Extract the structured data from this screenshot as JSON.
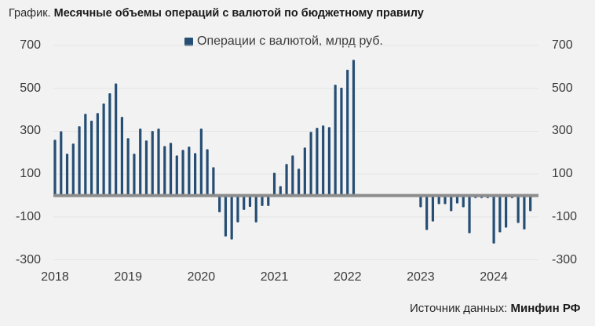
{
  "title": {
    "prefix": "График.",
    "main": "Месячные объемы операций с валютой по бюджетному правилу"
  },
  "legend": {
    "label": "Операции с валютой, млрд руб.",
    "color": "#264e74"
  },
  "y_ticks": [
    "700",
    "500",
    "300",
    "100",
    "-100",
    "-300"
  ],
  "x_ticks": [
    "2018",
    "2019",
    "2020",
    "2021",
    "2022",
    "2023",
    "2024"
  ],
  "source": {
    "prefix": "Источник данных:",
    "org": "Минфин РФ"
  },
  "colors": {
    "bar": "#264e74",
    "zero_line": "#8c8c8c",
    "grid": "#e4e4e4",
    "background": "#f2f2f2"
  },
  "chart_data": {
    "type": "bar",
    "title": "Месячные объемы операций с валютой по бюджетному правилу",
    "xlabel": "",
    "ylabel": "млрд руб.",
    "ylim": [
      -300,
      700
    ],
    "yticks": [
      700,
      500,
      300,
      100,
      -100,
      -300
    ],
    "grid": true,
    "legend_position": "top",
    "dual_y_axis_labels": true,
    "categories": [
      "2018-01",
      "2018-02",
      "2018-03",
      "2018-04",
      "2018-05",
      "2018-06",
      "2018-07",
      "2018-08",
      "2018-09",
      "2018-10",
      "2018-11",
      "2018-12",
      "2019-01",
      "2019-02",
      "2019-03",
      "2019-04",
      "2019-05",
      "2019-06",
      "2019-07",
      "2019-08",
      "2019-09",
      "2019-10",
      "2019-11",
      "2019-12",
      "2020-01",
      "2020-02",
      "2020-03",
      "2020-04",
      "2020-05",
      "2020-06",
      "2020-07",
      "2020-08",
      "2020-09",
      "2020-10",
      "2020-11",
      "2020-12",
      "2021-01",
      "2021-02",
      "2021-03",
      "2021-04",
      "2021-05",
      "2021-06",
      "2021-07",
      "2021-08",
      "2021-09",
      "2021-10",
      "2021-11",
      "2021-12",
      "2022-01",
      "2022-02",
      "2022-03",
      "2022-04",
      "2022-05",
      "2022-06",
      "2022-07",
      "2022-08",
      "2022-09",
      "2022-10",
      "2022-11",
      "2022-12",
      "2023-01",
      "2023-02",
      "2023-03",
      "2023-04",
      "2023-05",
      "2023-06",
      "2023-07",
      "2023-08",
      "2023-09",
      "2023-10",
      "2023-11",
      "2023-12",
      "2024-01",
      "2024-02",
      "2024-03",
      "2024-04",
      "2024-05",
      "2024-06",
      "2024-07"
    ],
    "series": [
      {
        "name": "Операции с валютой, млрд руб.",
        "values": [
          260,
          300,
          195,
          242,
          323,
          381,
          349,
          385,
          429,
          477,
          523,
          367,
          268,
          195,
          312,
          257,
          301,
          312,
          231,
          246,
          187,
          213,
          228,
          198,
          312,
          216,
          132,
          -78,
          -191,
          -205,
          -125,
          -67,
          -53,
          -125,
          -49,
          -49,
          106,
          44,
          147,
          187,
          125,
          224,
          297,
          316,
          327,
          319,
          517,
          503,
          587,
          633,
          null,
          null,
          null,
          null,
          null,
          null,
          null,
          null,
          null,
          null,
          -55,
          -161,
          -121,
          -40,
          -40,
          -73,
          -37,
          -55,
          -176,
          -12,
          -12,
          -12,
          -224,
          -172,
          -150,
          -12,
          -128,
          -158,
          -73
        ]
      }
    ]
  }
}
